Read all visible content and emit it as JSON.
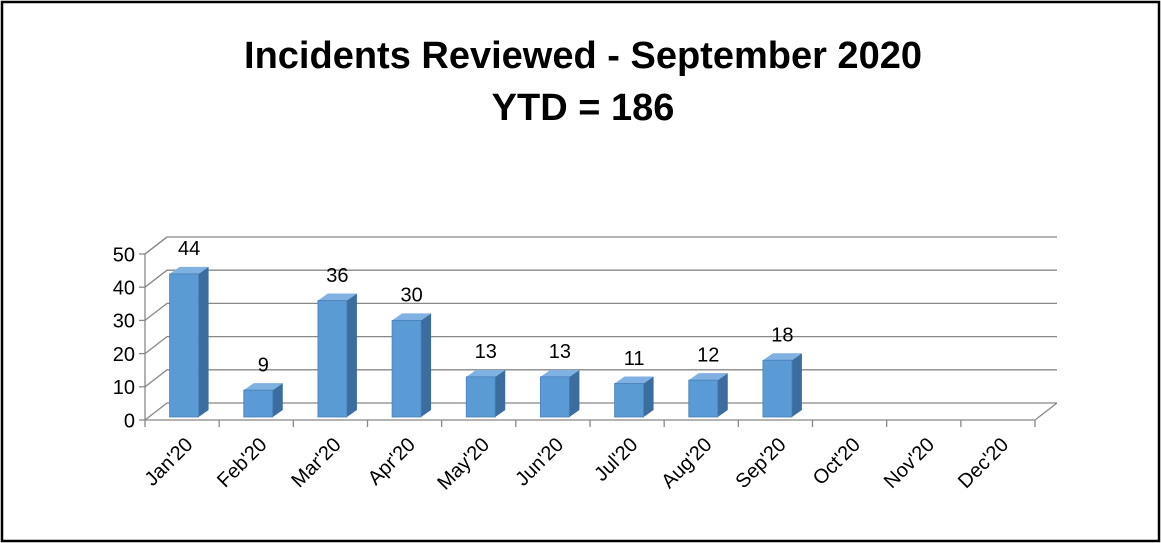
{
  "chart_data": {
    "type": "bar3d",
    "title": "Incidents Reviewed - September 2020",
    "subtitle": "YTD = 186",
    "categories": [
      "Jan'20",
      "Feb'20",
      "Mar'20",
      "Apr'20",
      "May'20",
      "Jun'20",
      "Jul'20",
      "Aug'20",
      "Sep'20",
      "Oct'20",
      "Nov'20",
      "Dec'20"
    ],
    "values": [
      44,
      9,
      36,
      30,
      13,
      13,
      11,
      12,
      18,
      null,
      null,
      null
    ],
    "color": "#5b9bd5",
    "ylim": [
      0,
      50
    ],
    "yticks": [
      0,
      10,
      20,
      30,
      40,
      50
    ],
    "grid": true
  }
}
